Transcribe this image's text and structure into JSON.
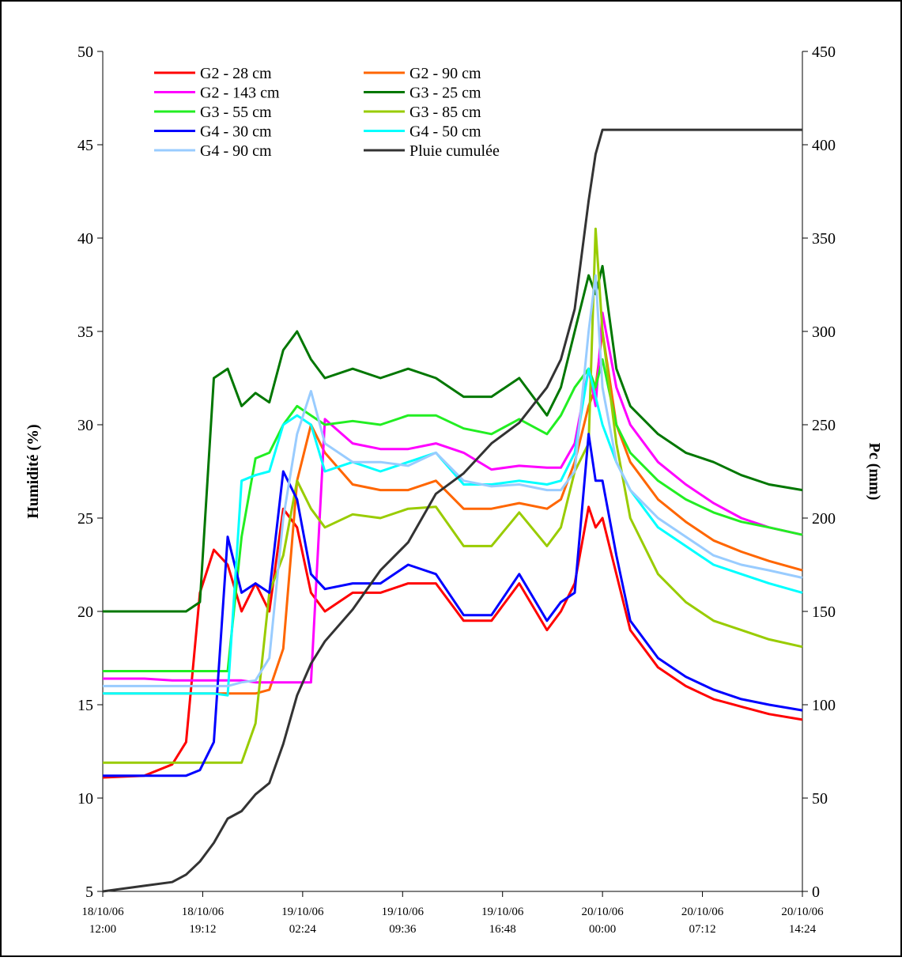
{
  "chart_data": {
    "type": "line",
    "y_label": "Humidité (%)",
    "y2_label": "Pc (mm)",
    "x": [
      "18/10/06 12:00",
      "18/10/06 15:00",
      "18/10/06 17:00",
      "18/10/06 18:00",
      "18/10/06 19:00",
      "18/10/06 20:00",
      "18/10/06 21:00",
      "18/10/06 22:00",
      "18/10/06 23:00",
      "19/10/06 00:00",
      "19/10/06 01:00",
      "19/10/06 02:00",
      "19/10/06 03:00",
      "19/10/06 04:00",
      "19/10/06 06:00",
      "19/10/06 08:00",
      "19/10/06 10:00",
      "19/10/06 12:00",
      "19/10/06 14:00",
      "19/10/06 16:00",
      "19/10/06 18:00",
      "19/10/06 20:00",
      "19/10/06 21:00",
      "19/10/06 22:00",
      "19/10/06 23:00",
      "19/10/06 23:30",
      "20/10/06 00:00",
      "20/10/06 01:00",
      "20/10/06 02:00",
      "20/10/06 04:00",
      "20/10/06 06:00",
      "20/10/06 08:00",
      "20/10/06 10:00",
      "20/10/06 12:00",
      "20/10/06 14:24"
    ],
    "xlim": [
      "18/10/06 12:00",
      "20/10/06 14:24"
    ],
    "xticks": [
      "18/10/06 12:00",
      "18/10/06 19:12",
      "19/10/06 02:24",
      "19/10/06 09:36",
      "19/10/06 16:48",
      "20/10/06 00:00",
      "20/10/06 07:12",
      "20/10/06 14:24"
    ],
    "ylim": [
      5,
      50
    ],
    "yticks": [
      5,
      10,
      15,
      20,
      25,
      30,
      35,
      40,
      45,
      50
    ],
    "y2lim": [
      0,
      450
    ],
    "y2ticks": [
      0,
      50,
      100,
      150,
      200,
      250,
      300,
      350,
      400,
      450
    ],
    "legend": "top-left",
    "grid": false,
    "series": [
      {
        "name": "G2 - 28 cm",
        "color": "#ff0000",
        "values": [
          11.1,
          11.2,
          11.8,
          13,
          21,
          23.3,
          22.5,
          20,
          21.5,
          20,
          25.5,
          24.5,
          21,
          20,
          21,
          21,
          21.5,
          21.5,
          19.5,
          19.5,
          21.5,
          19,
          20,
          21.5,
          25.6,
          24.5,
          25,
          22,
          19,
          17,
          16,
          15.3,
          14.9,
          14.5,
          14.2
        ]
      },
      {
        "name": "G2 - 90 cm",
        "color": "#ff6600",
        "values": [
          15.6,
          15.6,
          15.6,
          15.6,
          15.6,
          15.6,
          15.6,
          15.6,
          15.6,
          15.8,
          18,
          27,
          30,
          28.5,
          26.8,
          26.5,
          26.5,
          27,
          25.5,
          25.5,
          25.8,
          25.5,
          26,
          28,
          31,
          32,
          35,
          30,
          28,
          26,
          24.8,
          23.8,
          23.2,
          22.7,
          22.2
        ]
      },
      {
        "name": "G2 - 143 cm",
        "color": "#ff00ff",
        "values": [
          16.4,
          16.4,
          16.3,
          16.3,
          16.3,
          16.3,
          16.3,
          16.3,
          16.2,
          16.2,
          16.2,
          16.2,
          16.2,
          30.3,
          29,
          28.7,
          28.7,
          29,
          28.5,
          27.6,
          27.8,
          27.7,
          27.7,
          29,
          33,
          31,
          36,
          32,
          30,
          28,
          26.8,
          25.8,
          25,
          24.5,
          24.1
        ]
      },
      {
        "name": "G3 - 25 cm",
        "color": "#007700",
        "values": [
          20,
          20,
          20,
          20,
          20.5,
          32.5,
          33,
          31,
          31.7,
          31.2,
          34,
          35,
          33.5,
          32.5,
          33,
          32.5,
          33,
          32.5,
          31.5,
          31.5,
          32.5,
          30.5,
          32,
          35,
          38,
          37,
          38.5,
          33,
          31,
          29.5,
          28.5,
          28,
          27.3,
          26.8,
          26.5
        ]
      },
      {
        "name": "G3 - 55 cm",
        "color": "#22ee22",
        "values": [
          16.8,
          16.8,
          16.8,
          16.8,
          16.8,
          16.8,
          16.8,
          24,
          28.2,
          28.5,
          30,
          31,
          30.5,
          30,
          30.2,
          30,
          30.5,
          30.5,
          29.8,
          29.5,
          30.3,
          29.5,
          30.5,
          32,
          33,
          32,
          33.5,
          30,
          28.5,
          27,
          26,
          25.3,
          24.8,
          24.5,
          24.1
        ]
      },
      {
        "name": "G3 - 85 cm",
        "color": "#99cc00",
        "values": [
          11.9,
          11.9,
          11.9,
          11.9,
          11.9,
          11.9,
          11.9,
          11.9,
          14,
          21,
          23,
          27,
          25.5,
          24.5,
          25.2,
          25,
          25.5,
          25.6,
          23.5,
          23.5,
          25.3,
          23.5,
          24.5,
          27.5,
          29,
          40.5,
          35,
          29,
          25,
          22,
          20.5,
          19.5,
          19,
          18.5,
          18.1
        ]
      },
      {
        "name": "G4 - 30 cm",
        "color": "#0000ff",
        "values": [
          11.2,
          11.2,
          11.2,
          11.2,
          11.5,
          13,
          24,
          21,
          21.5,
          21,
          27.5,
          26,
          22,
          21.2,
          21.5,
          21.5,
          22.5,
          22,
          19.8,
          19.8,
          22,
          19.5,
          20.5,
          21,
          29.5,
          27,
          27,
          23,
          19.5,
          17.5,
          16.5,
          15.8,
          15.3,
          15,
          14.7
        ]
      },
      {
        "name": "G4 - 50 cm",
        "color": "#00ffff",
        "values": [
          15.6,
          15.6,
          15.6,
          15.6,
          15.6,
          15.6,
          15.5,
          27,
          27.3,
          27.5,
          30,
          30.5,
          30,
          27.5,
          28,
          27.5,
          28,
          28.5,
          26.8,
          26.8,
          27,
          26.8,
          27,
          28.5,
          33,
          31.5,
          30,
          28,
          26.5,
          24.5,
          23.5,
          22.5,
          22,
          21.5,
          21
        ]
      },
      {
        "name": "G4 - 90 cm",
        "color": "#99ccff",
        "values": [
          16,
          16,
          16,
          16,
          16,
          16,
          16,
          16.2,
          16.3,
          17.5,
          25,
          29.5,
          31.8,
          29,
          28,
          28,
          27.8,
          28.5,
          27,
          26.7,
          26.8,
          26.5,
          26.5,
          27.5,
          35,
          38,
          32,
          28,
          26.5,
          25,
          24,
          23,
          22.5,
          22.2,
          21.8
        ]
      },
      {
        "name": "Pluie cumulée",
        "color": "#333333",
        "axis": "y2",
        "values": [
          0,
          3,
          5,
          9,
          16,
          26,
          39,
          43,
          52,
          58,
          79,
          105,
          122,
          134,
          151,
          172,
          187,
          213,
          224,
          240,
          251,
          270,
          285,
          312,
          370,
          395,
          408,
          408,
          408,
          408,
          408,
          408,
          408,
          408,
          408
        ]
      }
    ]
  }
}
